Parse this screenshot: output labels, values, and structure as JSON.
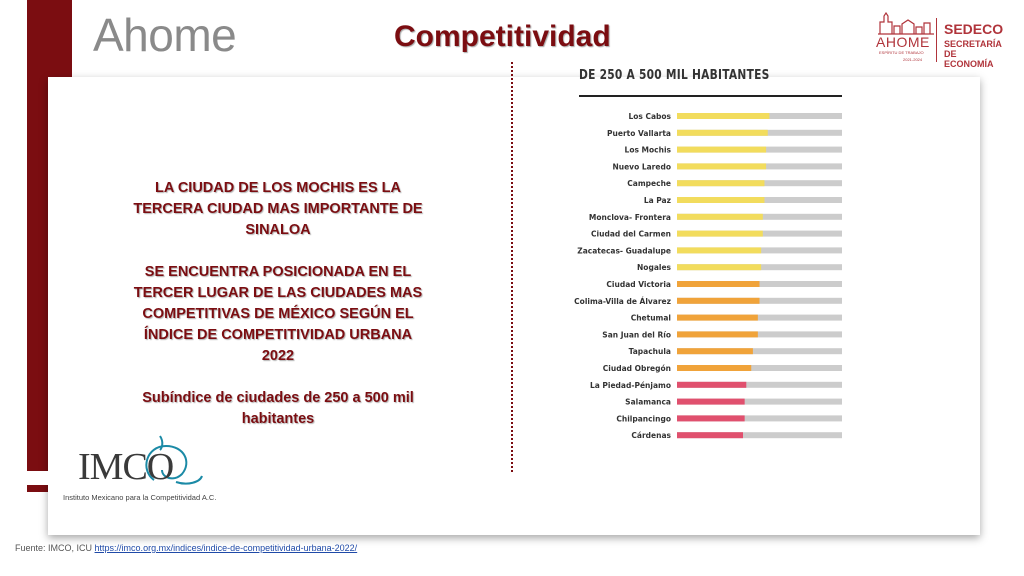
{
  "header": {
    "app_title": "Ahome",
    "page_title": "Competitividad"
  },
  "logo_right": {
    "ahome": "AHOME",
    "tagline": "ESPÍRITU DE TRABAJO",
    "years": "2021-2024",
    "sedeco": "SEDECO",
    "secretaria": "SECRETARÍA DE",
    "economia": "ECONOMÍA"
  },
  "text": {
    "p1": "LA CIUDAD DE LOS MOCHIS ES LA TERCERA CIUDAD MAS IMPORTANTE DE SINALOA",
    "p2": "SE ENCUENTRA POSICIONADA EN EL TERCER LUGAR DE LAS CIUDADES MAS COMPETITIVAS DE MÉXICO SEGÚN EL ÍNDICE DE COMPETITIVIDAD URBANA 2022",
    "p3": "Subíndice de ciudades de 250 a 500 mil habitantes"
  },
  "imco": {
    "word": "IMCO",
    "caption": "Instituto Mexicano para la Competitividad A.C."
  },
  "footer": {
    "prefix": "Fuente: IMCO, ICU",
    "link": "https://imco.org.mx/indices/indice-de-competitividad-urbana-2022/"
  },
  "colors": {
    "maroon": "#7b0d11",
    "yellow": "#f2dc5d",
    "orange": "#f0a33a",
    "pink": "#e0506e",
    "track": "#cccccc"
  },
  "chart_data": {
    "type": "bar",
    "orientation": "horizontal",
    "title": "DE 250 A 500 MIL HABITANTES",
    "xlim": [
      0,
      100
    ],
    "categories": [
      "Los Cabos",
      "Puerto Vallarta",
      "Los Mochis",
      "Nuevo Laredo",
      "Campeche",
      "La Paz",
      "Monclova- Frontera",
      "Ciudad del Carmen",
      "Zacatecas- Guadalupe",
      "Nogales",
      "Ciudad Victoria",
      "Colima-Villa de Álvarez",
      "Chetumal",
      "San Juan del Río",
      "Tapachula",
      "Ciudad Obregón",
      "La Piedad-Pénjamo",
      "Salamanca",
      "Chilpancingo",
      "Cárdenas"
    ],
    "values": [
      56,
      55,
      54,
      54,
      53,
      53,
      52,
      52,
      51,
      51,
      50,
      50,
      49,
      49,
      46,
      45,
      42,
      41,
      41,
      40
    ],
    "groups": [
      "yellow",
      "yellow",
      "yellow",
      "yellow",
      "yellow",
      "yellow",
      "yellow",
      "yellow",
      "yellow",
      "yellow",
      "orange",
      "orange",
      "orange",
      "orange",
      "orange",
      "orange",
      "pink",
      "pink",
      "pink",
      "pink"
    ]
  }
}
